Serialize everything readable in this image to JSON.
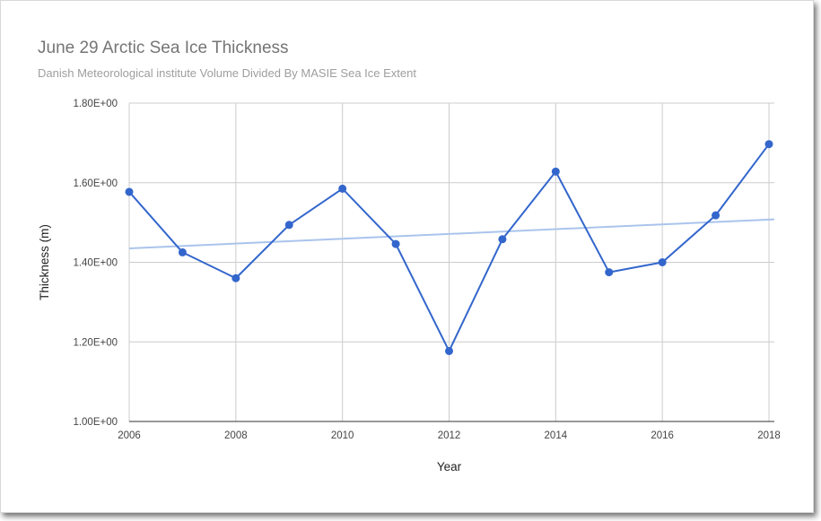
{
  "chart_data": {
    "type": "line",
    "title": "June 29 Arctic Sea Ice Thickness",
    "subtitle": "Danish Meteorological institute Volume Divided By MASIE Sea Ice Extent",
    "xlabel": "Year",
    "ylabel": "Thickness (m)",
    "xlim": [
      2006,
      2018
    ],
    "ylim": [
      1.0,
      1.8
    ],
    "x_ticks": [
      2006,
      2008,
      2010,
      2012,
      2014,
      2016,
      2018
    ],
    "y_ticks": [
      1.0,
      1.2,
      1.4,
      1.6,
      1.8
    ],
    "y_tick_labels": [
      "1.00E+00",
      "1.20E+00",
      "1.40E+00",
      "1.60E+00",
      "1.80E+00"
    ],
    "grid": true,
    "series": [
      {
        "x": [
          2006,
          2007,
          2008,
          2009,
          2010,
          2011,
          2012,
          2013,
          2014,
          2015,
          2016,
          2017,
          2018
        ],
        "values": [
          1.577,
          1.425,
          1.36,
          1.494,
          1.585,
          1.446,
          1.177,
          1.458,
          1.628,
          1.375,
          1.4,
          1.518,
          1.697
        ],
        "color": "#3366cc",
        "markers": true
      }
    ],
    "trendline": {
      "x": [
        2006,
        2018
      ],
      "values": [
        1.435,
        1.508
      ],
      "color": "#aac4ec"
    }
  }
}
